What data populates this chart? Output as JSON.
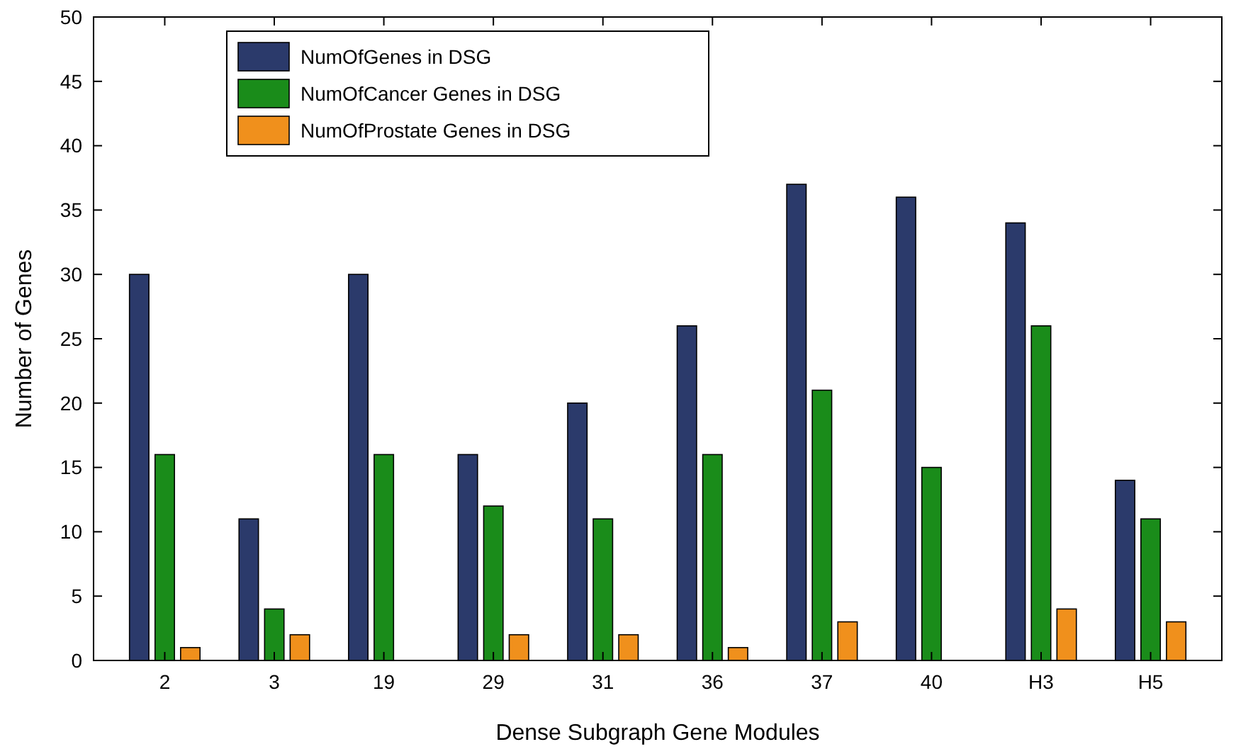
{
  "chart_data": {
    "type": "bar",
    "xlabel": "Dense Subgraph Gene Modules",
    "ylabel": "Number of Genes",
    "categories": [
      "2",
      "3",
      "19",
      "29",
      "31",
      "36",
      "37",
      "40",
      "H3",
      "H5"
    ],
    "series": [
      {
        "name": "NumOfGenes in DSG",
        "color": "#2b3a6b",
        "values": [
          30,
          11,
          30,
          16,
          20,
          26,
          37,
          36,
          34,
          14
        ]
      },
      {
        "name": "NumOfCancer Genes in DSG",
        "color": "#1a8c1a",
        "values": [
          16,
          4,
          16,
          12,
          11,
          16,
          21,
          15,
          26,
          11
        ]
      },
      {
        "name": "NumOfProstate Genes in DSG",
        "color": "#f0901c",
        "values": [
          1,
          2,
          0,
          2,
          2,
          1,
          3,
          0,
          4,
          3
        ]
      }
    ],
    "ylim": [
      0,
      50
    ],
    "yticks": [
      0,
      5,
      10,
      15,
      20,
      25,
      30,
      35,
      40,
      45,
      50
    ],
    "grid": false,
    "legend": "top left"
  }
}
